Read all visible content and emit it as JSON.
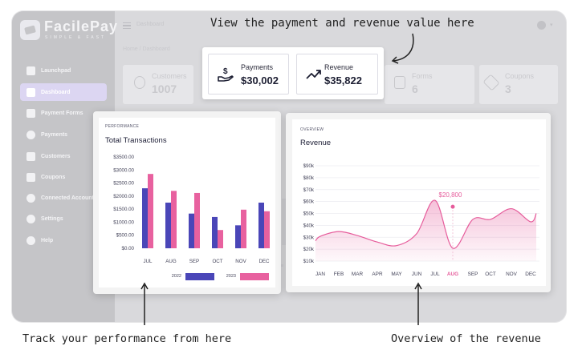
{
  "app": {
    "brand_name": "FacilePay",
    "brand_tagline": "SIMPLE & FAST",
    "topbar_title": "Dashboard",
    "breadcrumb": "Home / Dashboard"
  },
  "sidebar": {
    "items": [
      {
        "label": "Launchpad",
        "icon": "rocket-icon",
        "active": false
      },
      {
        "label": "Dashboard",
        "icon": "grid-icon",
        "active": true
      },
      {
        "label": "Payment Forms",
        "icon": "form-icon",
        "active": false
      },
      {
        "label": "Payments",
        "icon": "dollar-icon",
        "active": false
      },
      {
        "label": "Customers",
        "icon": "users-icon",
        "active": false
      },
      {
        "label": "Coupons",
        "icon": "tag-icon",
        "active": false
      },
      {
        "label": "Connected Accounts",
        "icon": "link-icon",
        "active": false
      },
      {
        "label": "Settings",
        "icon": "gear-icon",
        "active": false
      },
      {
        "label": "Help",
        "icon": "help-icon",
        "active": false
      }
    ]
  },
  "summary_cards": [
    {
      "label": "Customers",
      "value": "1007",
      "icon": "user-icon"
    },
    {
      "label": "Forms",
      "value": "6",
      "icon": "document-icon"
    },
    {
      "label": "Coupons",
      "value": "3",
      "icon": "tag-icon"
    }
  ],
  "stats": [
    {
      "label": "Payments",
      "value": "$30,002",
      "icon": "hand-coin-icon"
    },
    {
      "label": "Revenue",
      "value": "$35,822",
      "icon": "trending-up-icon"
    }
  ],
  "annotations": {
    "top": "View the payment and revenue value here",
    "bottom_left": "Track your performance from here",
    "bottom_right": "Overview of the revenue"
  },
  "colors": {
    "accent_blue": "#4a46b8",
    "accent_pink": "#e8619f",
    "revenue_line": "#e65c9b"
  },
  "chart_data": [
    {
      "type": "bar",
      "kicker": "PERFORMANCE",
      "title": "Total Transactions",
      "categories": [
        "JUL",
        "AUG",
        "SEP",
        "OCT",
        "NOV",
        "DEC"
      ],
      "y_tick_labels": [
        "$3500.00",
        "$3000.00",
        "$2500.00",
        "$2000.00",
        "$1500.00",
        "$1000.00",
        "$500.00",
        "$0.00"
      ],
      "ylim": [
        0,
        3500
      ],
      "series": [
        {
          "name": "2022",
          "values": [
            2300,
            1750,
            1330,
            1200,
            880,
            1750
          ]
        },
        {
          "name": "2023",
          "values": [
            2850,
            2200,
            2120,
            700,
            1480,
            1420
          ]
        }
      ],
      "legend": "bottom",
      "grid": false
    },
    {
      "type": "area",
      "kicker": "OVERVIEW",
      "title": "Revenue",
      "categories": [
        "JAN",
        "FEB",
        "MAR",
        "APR",
        "MAY",
        "JUN",
        "JUL",
        "AUG",
        "SEP",
        "OCT",
        "NOV",
        "DEC"
      ],
      "values": [
        30800,
        34800,
        31500,
        26000,
        23000,
        33000,
        61000,
        20800,
        45000,
        45000,
        54000,
        43000
      ],
      "y_tick_labels": [
        "$90k",
        "$80k",
        "$70k",
        "$60k",
        "$50k",
        "$40k",
        "$30k",
        "$20k",
        "$10k"
      ],
      "ylim": [
        10000,
        90000
      ],
      "highlight": {
        "category": "AUG",
        "label": "$20,800"
      },
      "grid": true
    }
  ]
}
